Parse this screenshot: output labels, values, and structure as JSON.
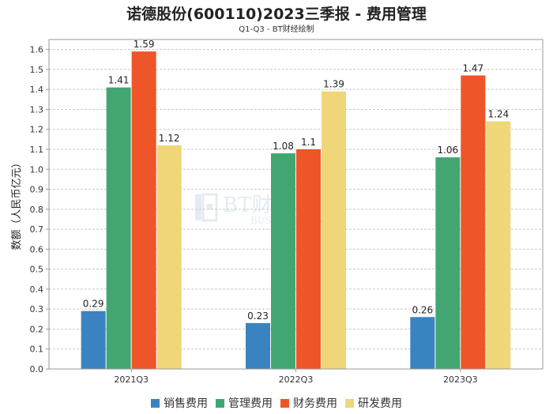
{
  "chart_data": {
    "type": "bar",
    "title": "诺德股份(600110)2023三季报 - 费用管理",
    "subtitle": "Q1-Q3 - BT财经绘制",
    "xlabel": "",
    "ylabel": "数额（人民币亿元）",
    "ylim": [
      0,
      1.65
    ],
    "yticks": [
      "0.0",
      "0.1",
      "0.2",
      "0.3",
      "0.4",
      "0.5",
      "0.6",
      "0.7",
      "0.8",
      "0.9",
      "1.0",
      "1.1",
      "1.2",
      "1.3",
      "1.4",
      "1.5",
      "1.6"
    ],
    "grid": true,
    "legend_position": "bottom",
    "categories": [
      "2021Q3",
      "2022Q3",
      "2023Q3"
    ],
    "series": [
      {
        "name": "销售费用",
        "color": "#3a83c1",
        "values": [
          0.29,
          0.23,
          0.26
        ],
        "labels": [
          "0.29",
          "0.23",
          "0.26"
        ]
      },
      {
        "name": "管理费用",
        "color": "#42a672",
        "values": [
          1.41,
          1.08,
          1.06
        ],
        "labels": [
          "1.41",
          "1.08",
          "1.06"
        ]
      },
      {
        "name": "财务费用",
        "color": "#ee5528",
        "values": [
          1.59,
          1.1,
          1.47
        ],
        "labels": [
          "1.59",
          "1.1",
          "1.47"
        ]
      },
      {
        "name": "研发费用",
        "color": "#efd679",
        "values": [
          1.12,
          1.39,
          1.24
        ],
        "labels": [
          "1.12",
          "1.39",
          "1.24"
        ]
      }
    ]
  },
  "watermark": {
    "main": "BT财经",
    "sub": "BUSINESS TIMES"
  }
}
